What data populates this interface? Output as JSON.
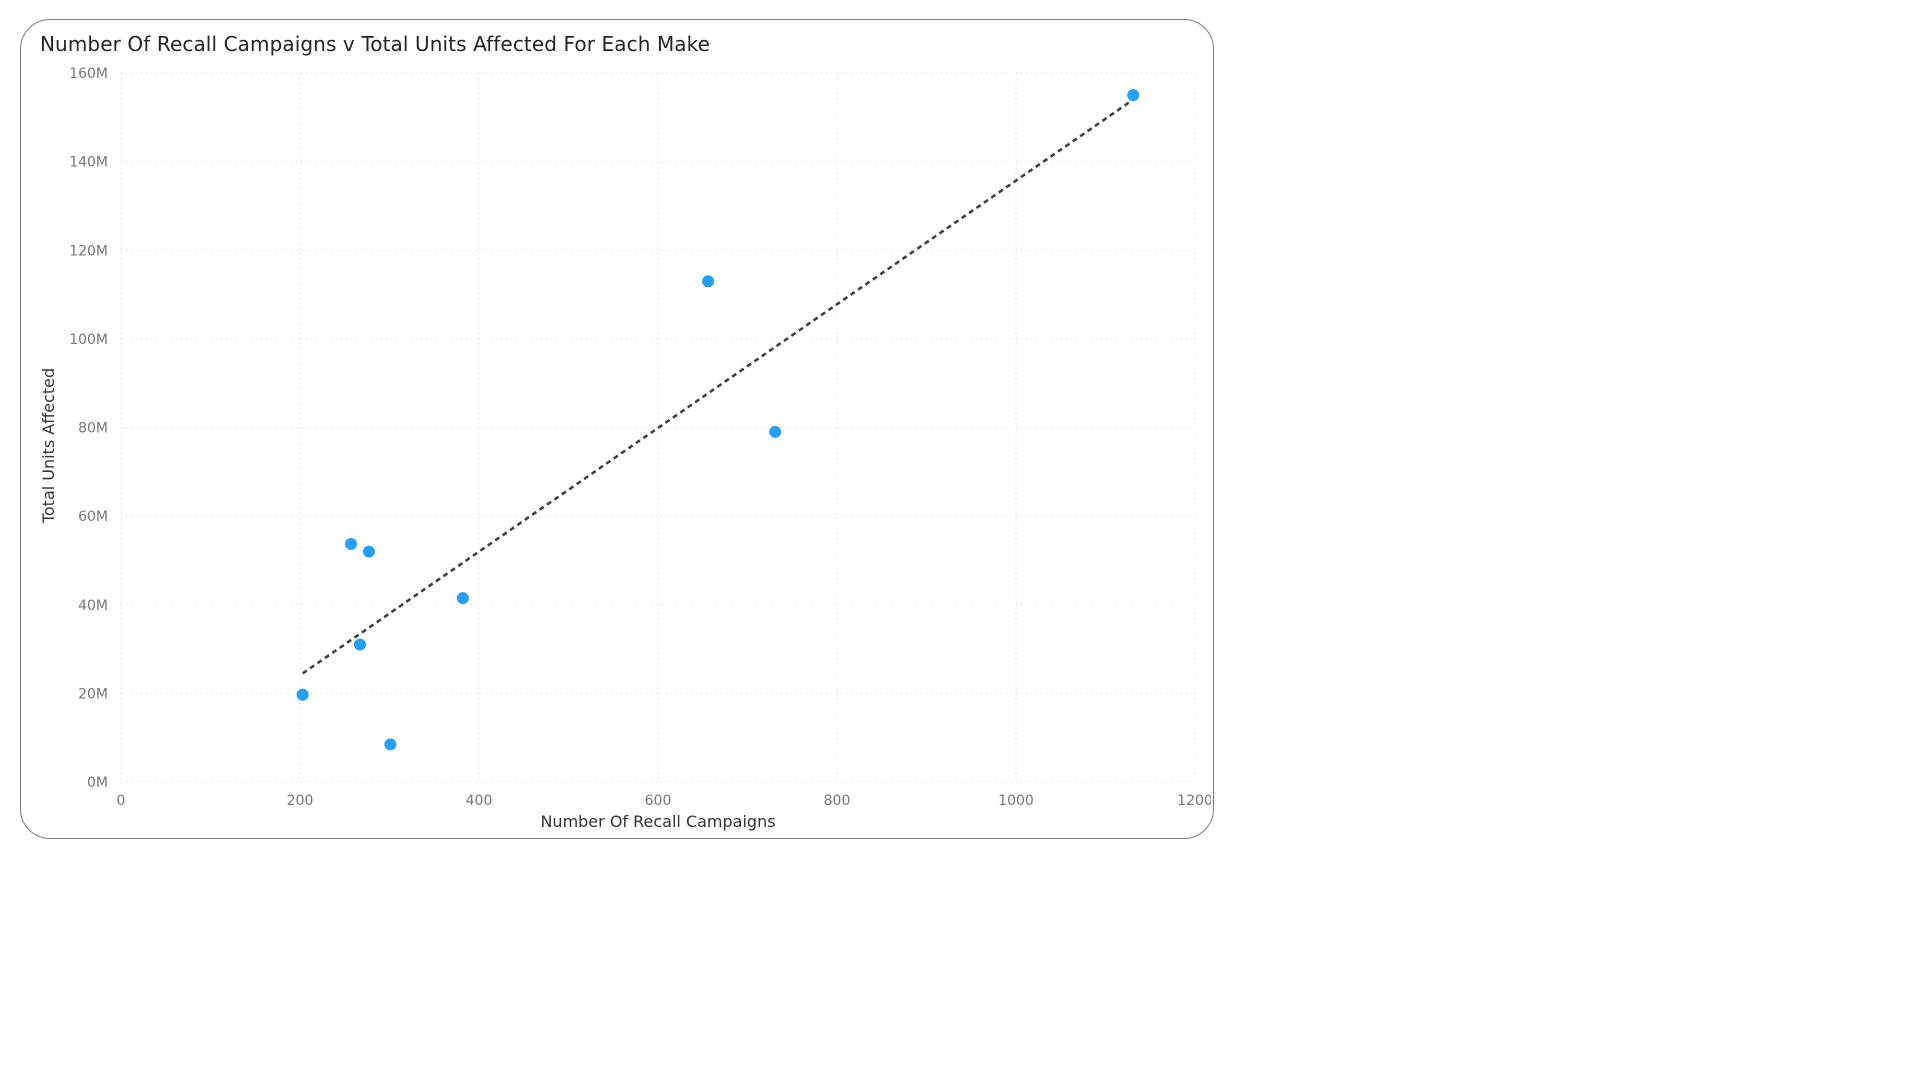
{
  "chart_data": {
    "type": "scatter",
    "title": "Number Of Recall Campaigns v Total Units Affected For Each Make",
    "xlabel": "Number Of Recall Campaigns",
    "ylabel": "Total Units Affected",
    "xlim": [
      0,
      1200
    ],
    "ylim": [
      0,
      160000000
    ],
    "x_ticks": [
      {
        "value": 0,
        "label": "0"
      },
      {
        "value": 200,
        "label": "200"
      },
      {
        "value": 400,
        "label": "400"
      },
      {
        "value": 600,
        "label": "600"
      },
      {
        "value": 800,
        "label": "800"
      },
      {
        "value": 1000,
        "label": "1000"
      },
      {
        "value": 1200,
        "label": "1200"
      }
    ],
    "y_ticks": [
      {
        "value": 0,
        "label": "0M"
      },
      {
        "value": 20000000,
        "label": "20M"
      },
      {
        "value": 40000000,
        "label": "40M"
      },
      {
        "value": 60000000,
        "label": "60M"
      },
      {
        "value": 80000000,
        "label": "80M"
      },
      {
        "value": 100000000,
        "label": "100M"
      },
      {
        "value": 120000000,
        "label": "120M"
      },
      {
        "value": 140000000,
        "label": "140M"
      },
      {
        "value": 160000000,
        "label": "160M"
      }
    ],
    "grid": true,
    "grid_style": "dotted",
    "point_color": "#2a9df4",
    "points": [
      {
        "x": 203,
        "y": 19700000
      },
      {
        "x": 257,
        "y": 53700000
      },
      {
        "x": 267,
        "y": 31000000
      },
      {
        "x": 277,
        "y": 52000000
      },
      {
        "x": 301,
        "y": 8500000
      },
      {
        "x": 382,
        "y": 41500000
      },
      {
        "x": 656,
        "y": 113000000
      },
      {
        "x": 731,
        "y": 79000000
      },
      {
        "x": 1131,
        "y": 155000000
      }
    ],
    "trendline": {
      "style": "dashed",
      "color": "#404040",
      "start": {
        "x": 203,
        "y": 24500000
      },
      "end": {
        "x": 1131,
        "y": 154000000
      }
    }
  }
}
